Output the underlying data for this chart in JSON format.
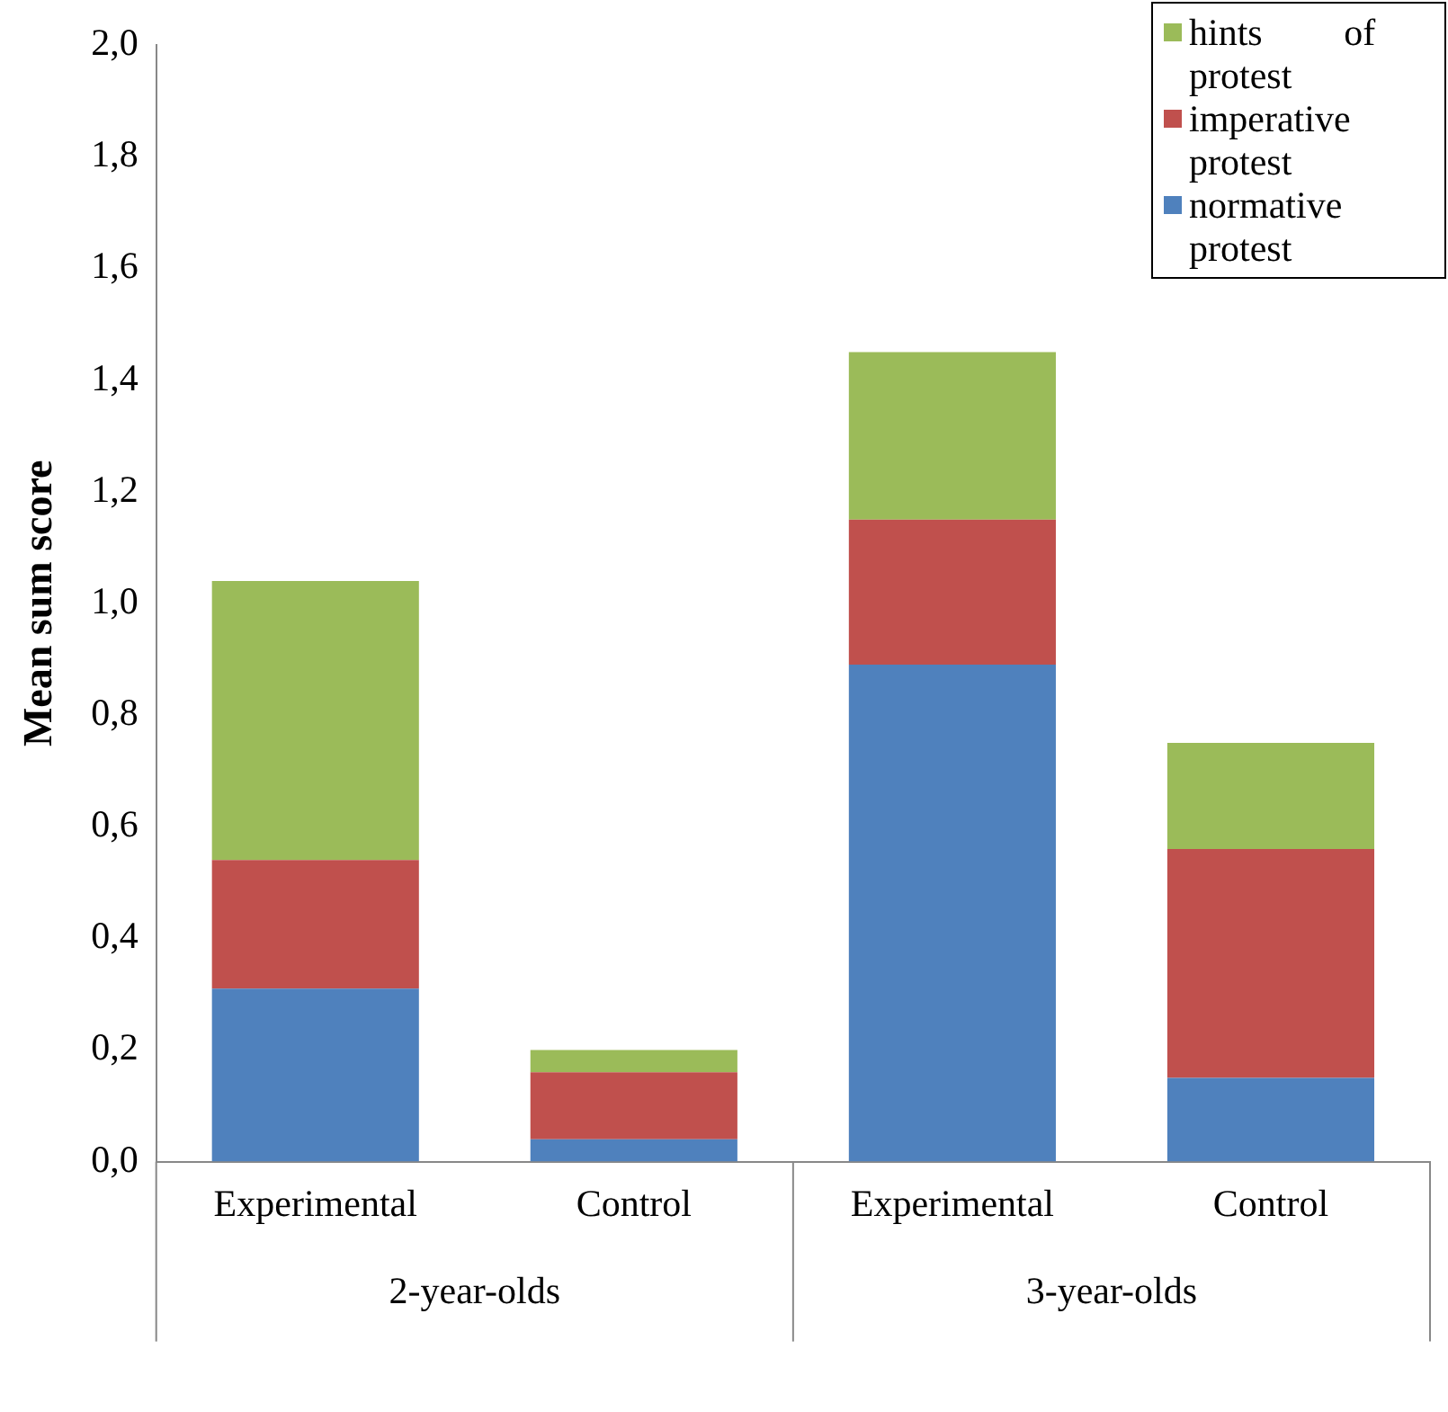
{
  "chart_data": {
    "type": "bar",
    "stacked": true,
    "ylabel": "Mean sum score",
    "categories": [
      "Experimental",
      "Control",
      "Experimental",
      "Control"
    ],
    "annotations": [
      "2-year-olds",
      "3-year-olds"
    ],
    "series": [
      {
        "name": "normative protest",
        "color": "#4f81bd",
        "values": [
          0.31,
          0.04,
          0.89,
          0.15
        ]
      },
      {
        "name": "imperative protest",
        "color": "#c0504d",
        "values": [
          0.23,
          0.12,
          0.26,
          0.41
        ]
      },
      {
        "name": "hints of protest",
        "color": "#9bbb59",
        "values": [
          0.5,
          0.04,
          0.3,
          0.19
        ]
      }
    ],
    "ylim": [
      0,
      2
    ],
    "yticks": [
      {
        "value": 0,
        "label": "0,0"
      },
      {
        "value": 0.2,
        "label": "0,2"
      },
      {
        "value": 0.4,
        "label": "0,4"
      },
      {
        "value": 0.6,
        "label": "0,6"
      },
      {
        "value": 0.8,
        "label": "0,8"
      },
      {
        "value": 1,
        "label": "1,0"
      },
      {
        "value": 1.2,
        "label": "1,2"
      },
      {
        "value": 1.4,
        "label": "1,4"
      },
      {
        "value": 1.6,
        "label": "1,6"
      },
      {
        "value": 1.8,
        "label": "1,8"
      },
      {
        "value": 2,
        "label": "2,0"
      }
    ],
    "grid": false,
    "legend": "top right"
  }
}
